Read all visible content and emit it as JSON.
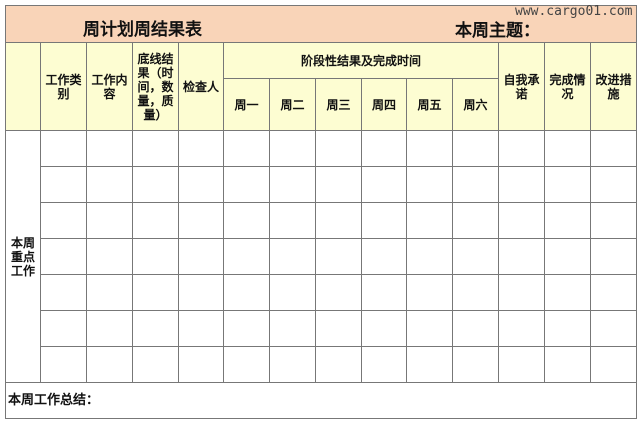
{
  "title": "周计划周结果表",
  "theme_label": "本周主题：",
  "watermark": "www.cargo01.com",
  "headers": {
    "category": "工作类别",
    "content": "工作内容",
    "baseline": "底线结果（时间，数量，质量）",
    "inspector": "检查人",
    "stage": "阶段性结果及完成时间",
    "days": [
      "周一",
      "周二",
      "周三",
      "周四",
      "周五",
      "周六"
    ],
    "commitment": "自我承诺",
    "completion": "完成情况",
    "improvement": "改进措施"
  },
  "row_label": "本周重点工作",
  "summary_label": "本周工作总结：",
  "colors": {
    "title_bg": "#f9d4b8",
    "header_bg": "#fdfdd2"
  }
}
